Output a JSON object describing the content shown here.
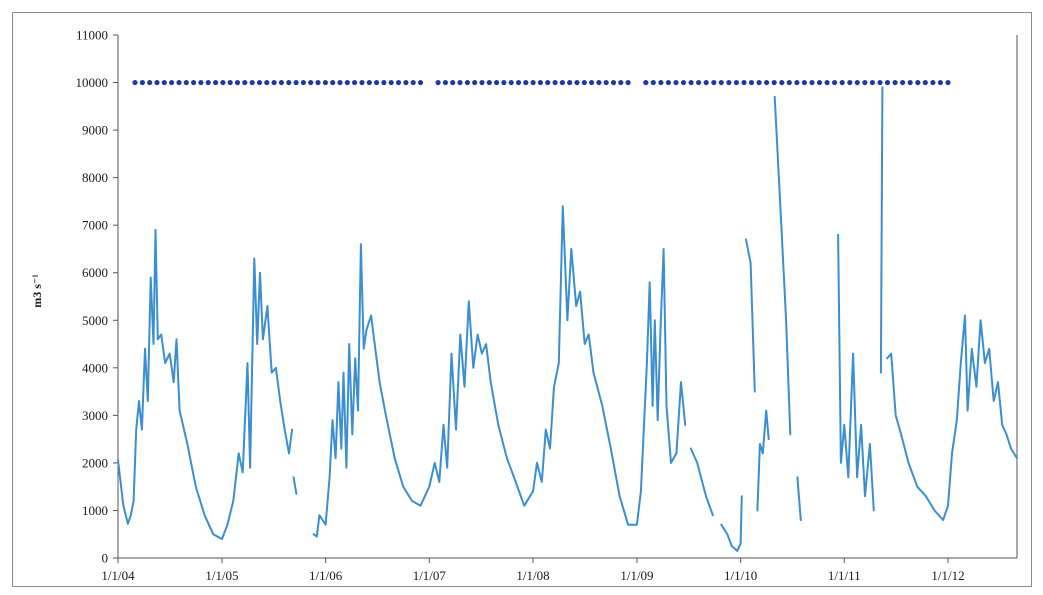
{
  "chart_data": {
    "type": "line",
    "title": "",
    "xlabel": "",
    "ylabel": "m3 s⁻¹",
    "ylim": [
      0,
      11000
    ],
    "yticks": [
      0,
      1000,
      2000,
      3000,
      4000,
      5000,
      6000,
      7000,
      8000,
      9000,
      10000,
      11000
    ],
    "xlim": [
      "2004-01-01",
      "2012-08-31"
    ],
    "xtick_labels": [
      "1/1/04",
      "1/1/05",
      "1/1/06",
      "1/1/07",
      "1/1/08",
      "1/1/09",
      "1/1/10",
      "1/1/11",
      "1/1/12"
    ],
    "xtick_dates": [
      "2004-01-01",
      "2005-01-01",
      "2006-01-01",
      "2007-01-01",
      "2008-01-01",
      "2009-01-01",
      "2010-01-01",
      "2011-01-01",
      "2012-01-01"
    ],
    "grid": false,
    "legend": "none",
    "colors": {
      "discharge": "#3b8fd0",
      "coverage": "#1f3a9a"
    },
    "series": [
      {
        "kind": "line",
        "segments": [
          [
            [
              "2004-01-01",
              2050
            ],
            [
              "2004-01-20",
              1100
            ],
            [
              "2004-02-05",
              720
            ],
            [
              "2004-02-15",
              900
            ],
            [
              "2004-02-25",
              1200
            ],
            [
              "2004-03-05",
              2700
            ],
            [
              "2004-03-15",
              3300
            ],
            [
              "2004-03-25",
              2700
            ],
            [
              "2004-04-05",
              4400
            ],
            [
              "2004-04-15",
              3300
            ],
            [
              "2004-04-25",
              5900
            ],
            [
              "2004-05-05",
              4500
            ],
            [
              "2004-05-12",
              6900
            ],
            [
              "2004-05-20",
              4600
            ],
            [
              "2004-06-01",
              4700
            ],
            [
              "2004-06-15",
              4100
            ],
            [
              "2004-07-01",
              4300
            ],
            [
              "2004-07-15",
              3700
            ],
            [
              "2004-07-25",
              4600
            ],
            [
              "2004-08-05",
              3100
            ],
            [
              "2004-09-01",
              2400
            ],
            [
              "2004-10-01",
              1500
            ],
            [
              "2004-11-01",
              900
            ],
            [
              "2004-12-01",
              500
            ],
            [
              "2005-01-01",
              400
            ],
            [
              "2005-01-20",
              700
            ],
            [
              "2005-02-10",
              1200
            ],
            [
              "2005-03-01",
              2200
            ],
            [
              "2005-03-15",
              1800
            ],
            [
              "2005-04-01",
              4100
            ],
            [
              "2005-04-10",
              1900
            ],
            [
              "2005-04-25",
              6300
            ],
            [
              "2005-05-05",
              4500
            ],
            [
              "2005-05-15",
              6000
            ],
            [
              "2005-05-25",
              4600
            ],
            [
              "2005-06-10",
              5300
            ],
            [
              "2005-06-25",
              3900
            ],
            [
              "2005-07-10",
              4000
            ],
            [
              "2005-07-25",
              3300
            ],
            [
              "2005-08-10",
              2700
            ],
            [
              "2005-08-25",
              2200
            ],
            [
              "2005-09-05",
              2700
            ]
          ],
          [
            [
              "2005-09-10",
              1700
            ],
            [
              "2005-09-20",
              1350
            ]
          ],
          [
            [
              "2005-11-20",
              500
            ],
            [
              "2005-12-01",
              450
            ],
            [
              "2005-12-10",
              900
            ],
            [
              "2006-01-01",
              700
            ],
            [
              "2006-01-15",
              1700
            ],
            [
              "2006-01-25",
              2900
            ],
            [
              "2006-02-05",
              2100
            ],
            [
              "2006-02-15",
              3700
            ],
            [
              "2006-02-25",
              2300
            ],
            [
              "2006-03-05",
              3900
            ],
            [
              "2006-03-15",
              1900
            ],
            [
              "2006-03-25",
              4500
            ],
            [
              "2006-04-05",
              2600
            ],
            [
              "2006-04-15",
              4200
            ],
            [
              "2006-04-25",
              3100
            ],
            [
              "2006-05-05",
              6600
            ],
            [
              "2006-05-15",
              4400
            ],
            [
              "2006-05-25",
              4800
            ],
            [
              "2006-06-10",
              5100
            ],
            [
              "2006-06-25",
              4400
            ],
            [
              "2006-07-10",
              3700
            ],
            [
              "2006-08-01",
              3000
            ],
            [
              "2006-09-01",
              2100
            ],
            [
              "2006-10-01",
              1500
            ],
            [
              "2006-11-01",
              1200
            ],
            [
              "2006-12-01",
              1100
            ],
            [
              "2007-01-01",
              1500
            ],
            [
              "2007-01-20",
              2000
            ],
            [
              "2007-02-05",
              1600
            ],
            [
              "2007-02-20",
              2800
            ],
            [
              "2007-03-05",
              1900
            ],
            [
              "2007-03-20",
              4300
            ],
            [
              "2007-04-05",
              2700
            ],
            [
              "2007-04-20",
              4700
            ],
            [
              "2007-05-05",
              3600
            ],
            [
              "2007-05-20",
              5400
            ],
            [
              "2007-06-05",
              4000
            ],
            [
              "2007-06-20",
              4700
            ],
            [
              "2007-07-05",
              4300
            ],
            [
              "2007-07-20",
              4500
            ],
            [
              "2007-08-05",
              3700
            ],
            [
              "2007-09-01",
              2800
            ],
            [
              "2007-10-01",
              2100
            ],
            [
              "2007-11-01",
              1600
            ],
            [
              "2007-12-01",
              1100
            ],
            [
              "2008-01-01",
              1400
            ],
            [
              "2008-01-15",
              2000
            ],
            [
              "2008-02-01",
              1600
            ],
            [
              "2008-02-15",
              2700
            ],
            [
              "2008-03-01",
              2300
            ],
            [
              "2008-03-15",
              3600
            ],
            [
              "2008-04-01",
              4100
            ],
            [
              "2008-04-15",
              7400
            ],
            [
              "2008-05-01",
              5000
            ],
            [
              "2008-05-15",
              6500
            ],
            [
              "2008-06-01",
              5300
            ],
            [
              "2008-06-15",
              5600
            ],
            [
              "2008-07-01",
              4500
            ],
            [
              "2008-07-15",
              4700
            ],
            [
              "2008-08-01",
              3900
            ],
            [
              "2008-09-01",
              3200
            ],
            [
              "2008-10-01",
              2300
            ],
            [
              "2008-11-01",
              1300
            ],
            [
              "2008-12-01",
              700
            ],
            [
              "2009-01-01",
              700
            ],
            [
              "2009-01-15",
              1400
            ],
            [
              "2009-01-25",
              2700
            ],
            [
              "2009-02-05",
              4100
            ],
            [
              "2009-02-15",
              5800
            ],
            [
              "2009-02-25",
              3200
            ],
            [
              "2009-03-05",
              5000
            ],
            [
              "2009-03-15",
              2900
            ],
            [
              "2009-03-25",
              4800
            ],
            [
              "2009-04-05",
              6500
            ],
            [
              "2009-04-15",
              3200
            ],
            [
              "2009-05-01",
              2000
            ],
            [
              "2009-05-20",
              2200
            ],
            [
              "2009-06-05",
              3700
            ],
            [
              "2009-06-20",
              2800
            ]
          ],
          [
            [
              "2009-07-10",
              2300
            ],
            [
              "2009-08-01",
              2000
            ],
            [
              "2009-09-01",
              1300
            ],
            [
              "2009-09-25",
              900
            ]
          ],
          [
            [
              "2009-10-25",
              700
            ],
            [
              "2009-11-15",
              500
            ],
            [
              "2009-12-01",
              250
            ],
            [
              "2009-12-20",
              150
            ],
            [
              "2010-01-01",
              300
            ],
            [
              "2010-01-05",
              1300
            ]
          ],
          [
            [
              "2010-01-20",
              6700
            ],
            [
              "2010-02-05",
              6200
            ],
            [
              "2010-02-20",
              3500
            ]
          ],
          [
            [
              "2010-03-01",
              1000
            ],
            [
              "2010-03-10",
              2400
            ],
            [
              "2010-03-20",
              2200
            ],
            [
              "2010-04-01",
              3100
            ],
            [
              "2010-04-10",
              2500
            ]
          ],
          [
            [
              "2010-05-01",
              9700
            ],
            [
              "2010-05-20",
              7500
            ],
            [
              "2010-06-10",
              5000
            ],
            [
              "2010-06-25",
              2600
            ]
          ],
          [
            [
              "2010-07-20",
              1700
            ],
            [
              "2010-08-01",
              800
            ]
          ],
          [
            [
              "2010-12-10",
              6800
            ],
            [
              "2010-12-20",
              2000
            ],
            [
              "2011-01-01",
              2800
            ],
            [
              "2011-01-15",
              1700
            ],
            [
              "2011-02-01",
              4300
            ],
            [
              "2011-02-15",
              1700
            ],
            [
              "2011-03-01",
              2800
            ],
            [
              "2011-03-15",
              1300
            ],
            [
              "2011-04-01",
              2400
            ],
            [
              "2011-04-15",
              1000
            ]
          ],
          [
            [
              "2011-05-10",
              3900
            ],
            [
              "2011-05-15",
              9900
            ]
          ],
          [
            [
              "2011-06-01",
              4200
            ],
            [
              "2011-06-15",
              4300
            ],
            [
              "2011-07-01",
              3000
            ],
            [
              "2011-07-20",
              2600
            ],
            [
              "2011-08-15",
              2000
            ],
            [
              "2011-09-15",
              1500
            ],
            [
              "2011-10-15",
              1300
            ],
            [
              "2011-11-15",
              1000
            ],
            [
              "2011-12-15",
              800
            ],
            [
              "2012-01-01",
              1100
            ],
            [
              "2012-01-15",
              2200
            ],
            [
              "2012-02-01",
              2900
            ],
            [
              "2012-02-15",
              4100
            ],
            [
              "2012-03-01",
              5100
            ],
            [
              "2012-03-10",
              3100
            ],
            [
              "2012-03-25",
              4400
            ],
            [
              "2012-04-10",
              3600
            ],
            [
              "2012-04-25",
              5000
            ],
            [
              "2012-05-10",
              4100
            ],
            [
              "2012-05-25",
              4400
            ],
            [
              "2012-06-10",
              3300
            ],
            [
              "2012-06-25",
              3700
            ],
            [
              "2012-07-10",
              2800
            ],
            [
              "2012-07-25",
              2600
            ],
            [
              "2012-08-10",
              2300
            ],
            [
              "2012-08-31",
              2100
            ]
          ]
        ]
      },
      {
        "kind": "points",
        "y": 10000,
        "ranges": [
          {
            "start": "2004-03-01",
            "end": "2006-12-01",
            "count": 40
          },
          {
            "start": "2007-02-01",
            "end": "2008-12-01",
            "count": 27
          },
          {
            "start": "2009-02-01",
            "end": "2012-01-01",
            "count": 41
          }
        ]
      }
    ]
  }
}
